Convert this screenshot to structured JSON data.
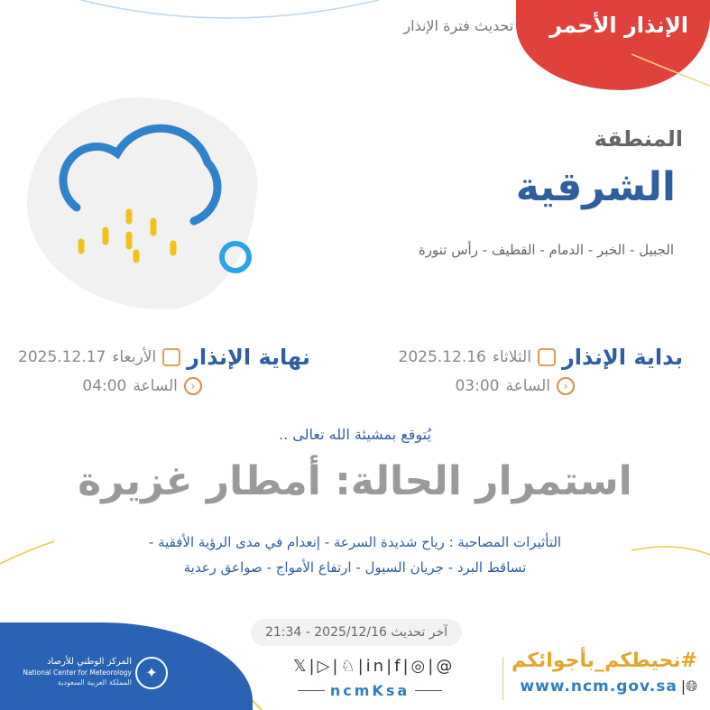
{
  "header": {
    "warning_level": "الإنذار الأحمر",
    "update_label": "تحديث فترة الإنذار",
    "accent": "#e0413a"
  },
  "weather_icon": "cloud-rain-icon",
  "region": {
    "label": "المنطقة",
    "name": "الشرقية",
    "cities": "الجبيل - الخبر - الدمام - القطيف - رأس تنورة"
  },
  "start": {
    "title": "بداية الإنذار",
    "day": "الثلاثاء",
    "date": "2025.12.16",
    "time_label": "الساعة",
    "time": "03:00"
  },
  "end": {
    "title": "نهاية الإنذار",
    "day": "الأربعاء",
    "date": "2025.12.17",
    "time_label": "الساعة",
    "time": "04:00"
  },
  "forecast": {
    "intro": "يُتوقع بمشيئة الله تعالى ..",
    "headline": "استمرار الحالة: أمطار غزيرة",
    "effects_line1": "التأثيرات المصاحبة : رياح شديدة السرعة - إنعدام في مدى الرؤية الأفقية -",
    "effects_line2": "تساقط البرد - جريان السيول - ارتفاع الأمواج - صواعق رعدية"
  },
  "footer": {
    "last_update": "آخر تحديث 2025/12/16 - 21:34",
    "social_icons": [
      "x-icon",
      "youtube-icon",
      "snapchat-icon",
      "linkedin-icon",
      "facebook-icon",
      "instagram-icon",
      "threads-icon"
    ],
    "social_glyphs": "𝕏|▷|♘|in|f|◎|@",
    "handle": "ncmKsa",
    "hashtag": "#نحيطكم_بأجوائكم",
    "website": "www.ncm.gov.sa",
    "org_ar": "المركز الوطني للأرصاد",
    "org_en": "National Center for Meteorology",
    "country": "المملكة العربية السعودية"
  }
}
